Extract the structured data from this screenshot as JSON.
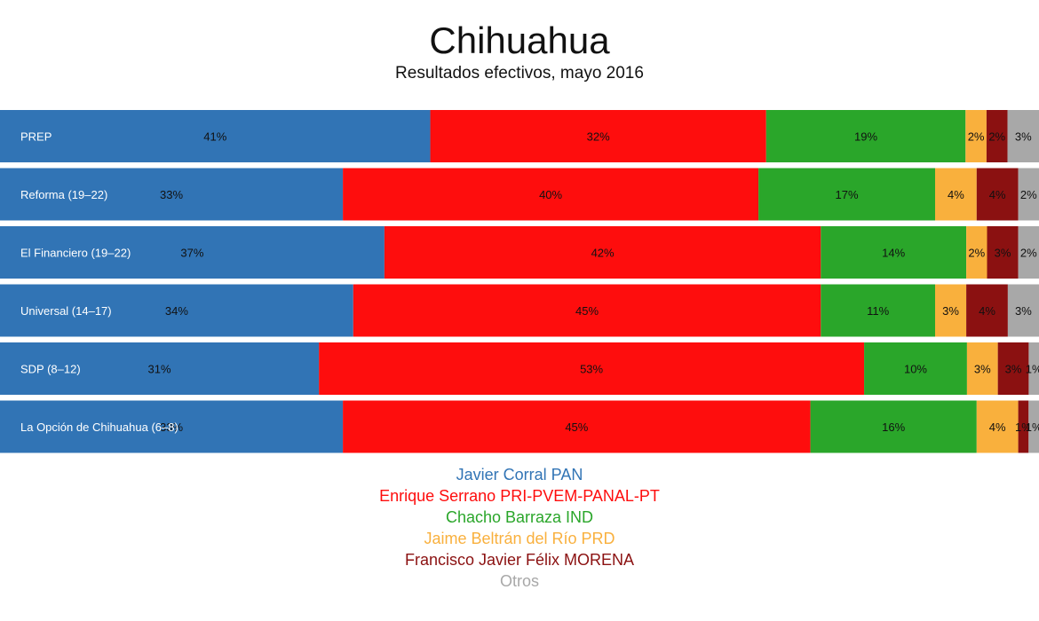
{
  "chart_data": {
    "type": "bar",
    "orientation": "horizontal",
    "stacked": true,
    "normalized": true,
    "title": "Chihuahua",
    "subtitle": "Resultados efectivos, mayo 2016",
    "categories": [
      "PREP",
      "Reforma (19–22)",
      "El Financiero (19–22)",
      "Universal (14–17)",
      "SDP (8–12)",
      "La Opción de Chihuahua (6–8)"
    ],
    "series": [
      {
        "name": "Javier Corral PAN",
        "color": "#3174b5",
        "values": [
          41,
          33,
          37,
          34,
          31,
          33
        ]
      },
      {
        "name": "Enrique Serrano PRI-PVEM-PANAL-PT",
        "color": "#fe0d0d",
        "values": [
          32,
          40,
          42,
          45,
          53,
          45
        ]
      },
      {
        "name": "Chacho Barraza IND",
        "color": "#2aa62a",
        "values": [
          19,
          17,
          14,
          11,
          10,
          16
        ]
      },
      {
        "name": "Jaime Beltrán del Río PRD",
        "color": "#f9b03d",
        "values": [
          2,
          4,
          2,
          3,
          3,
          4
        ]
      },
      {
        "name": "Francisco Javier Félix MORENA",
        "color": "#8b1111",
        "values": [
          2,
          4,
          3,
          4,
          3,
          1
        ]
      },
      {
        "name": "Otros",
        "color": "#a8a8a8",
        "values": [
          3,
          2,
          2,
          3,
          1,
          1
        ]
      }
    ],
    "legend_position": "bottom",
    "grid": false
  }
}
